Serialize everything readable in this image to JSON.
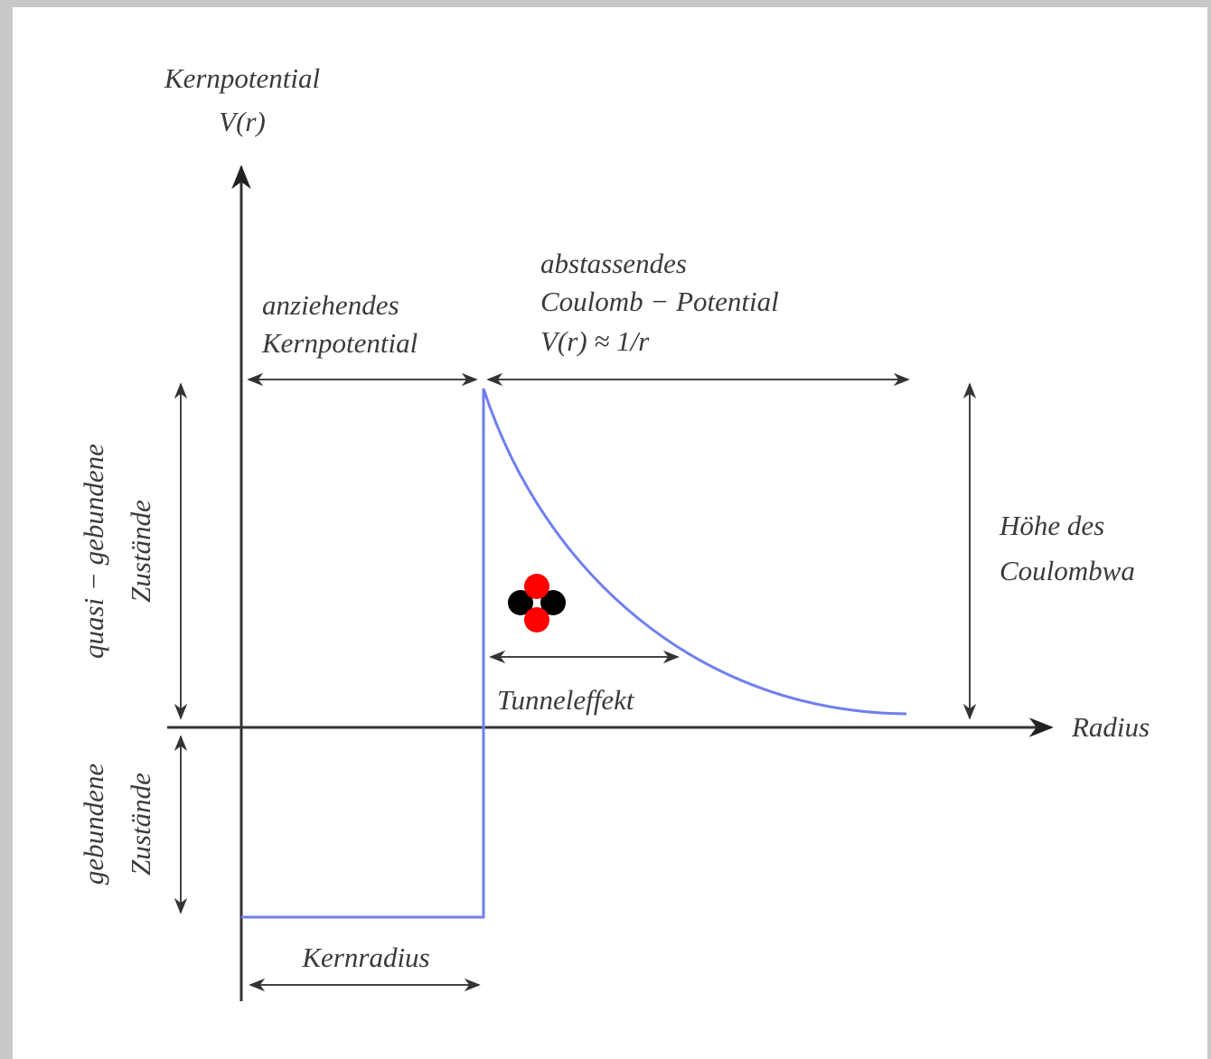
{
  "axes": {
    "y_label": [
      "Kernpotential",
      "V(r)"
    ],
    "x_label": "Radius"
  },
  "annotations": {
    "attractive": [
      "anziehendes",
      "Kernpotential"
    ],
    "repulsive": [
      "abstassendes",
      "Coulomb − Potential",
      "V(r) ≈ 1/r"
    ],
    "barrier_height": [
      "Höhe des",
      "Coulombwa"
    ],
    "tunnel": "Tunneleffekt",
    "quasi_bound": [
      "quasi − gebundene",
      "Zustände"
    ],
    "bound": [
      "gebundene",
      "Zustände"
    ],
    "nuclear_radius": "Kernradius"
  }
}
